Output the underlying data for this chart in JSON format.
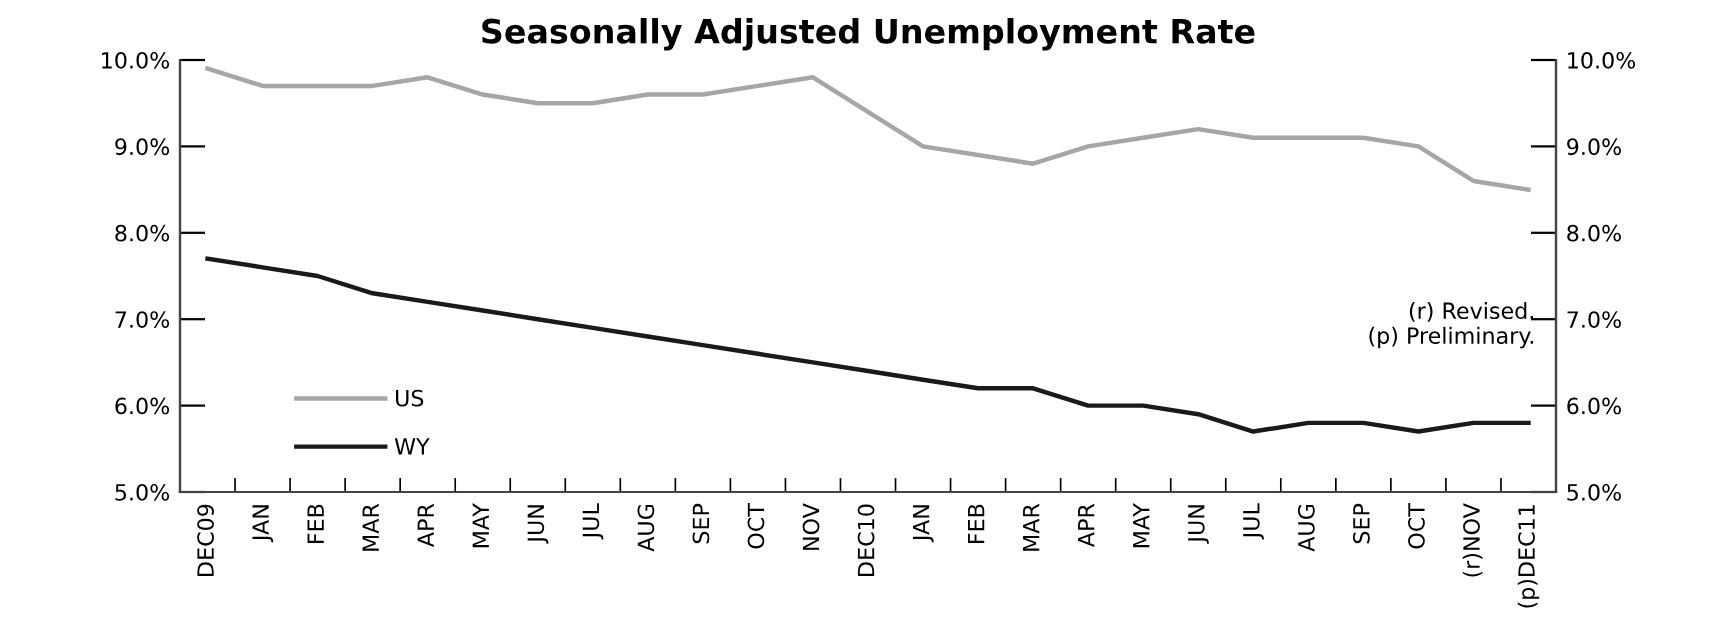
{
  "chart_data": {
    "type": "line",
    "title": "Seasonally Adjusted Unemployment Rate",
    "categories": [
      "DEC09",
      "JAN",
      "FEB",
      "MAR",
      "APR",
      "MAY",
      "JUN",
      "JUL",
      "AUG",
      "SEP",
      "OCT",
      "NOV",
      "DEC10",
      "JAN",
      "FEB",
      "MAR",
      "APR",
      "MAY",
      "JUN",
      "JUL",
      "AUG",
      "SEP",
      "OCT",
      "(r)NOV",
      "(p)DEC11"
    ],
    "series": [
      {
        "name": "US",
        "color": "#a6a6a6",
        "values": [
          9.9,
          9.7,
          9.7,
          9.7,
          9.8,
          9.6,
          9.5,
          9.5,
          9.6,
          9.6,
          9.7,
          9.8,
          9.4,
          9.0,
          8.9,
          8.8,
          9.0,
          9.1,
          9.2,
          9.1,
          9.1,
          9.1,
          9.0,
          8.6,
          8.5
        ]
      },
      {
        "name": "WY",
        "color": "#1a1a1a",
        "values": [
          7.7,
          7.6,
          7.5,
          7.3,
          7.2,
          7.1,
          7.0,
          6.9,
          6.8,
          6.7,
          6.6,
          6.5,
          6.4,
          6.3,
          6.2,
          6.2,
          6.0,
          6.0,
          5.9,
          5.7,
          5.8,
          5.8,
          5.7,
          5.8,
          5.8
        ]
      }
    ],
    "ylim": [
      5,
      10
    ],
    "yticks": [
      {
        "value": 5,
        "label": "5.0%"
      },
      {
        "value": 6,
        "label": "6.0%"
      },
      {
        "value": 7,
        "label": "7.0%"
      },
      {
        "value": 8,
        "label": "8.0%"
      },
      {
        "value": 9,
        "label": "9.0%"
      },
      {
        "value": 10,
        "label": "10.0%"
      }
    ],
    "y2lim": [
      5,
      10
    ],
    "y2ticks": [
      {
        "value": 5,
        "label": "5.0%"
      },
      {
        "value": 6,
        "label": "6.0%"
      },
      {
        "value": 7,
        "label": "7.0%"
      },
      {
        "value": 8,
        "label": "8.0%"
      },
      {
        "value": 9,
        "label": "9.0%"
      },
      {
        "value": 10,
        "label": "10.0%"
      }
    ],
    "annotations": [
      "(r) Revised.\n(p) Preliminary."
    ],
    "legend": "bottom left",
    "grid": false,
    "marker": "none",
    "line_style": "solid"
  }
}
